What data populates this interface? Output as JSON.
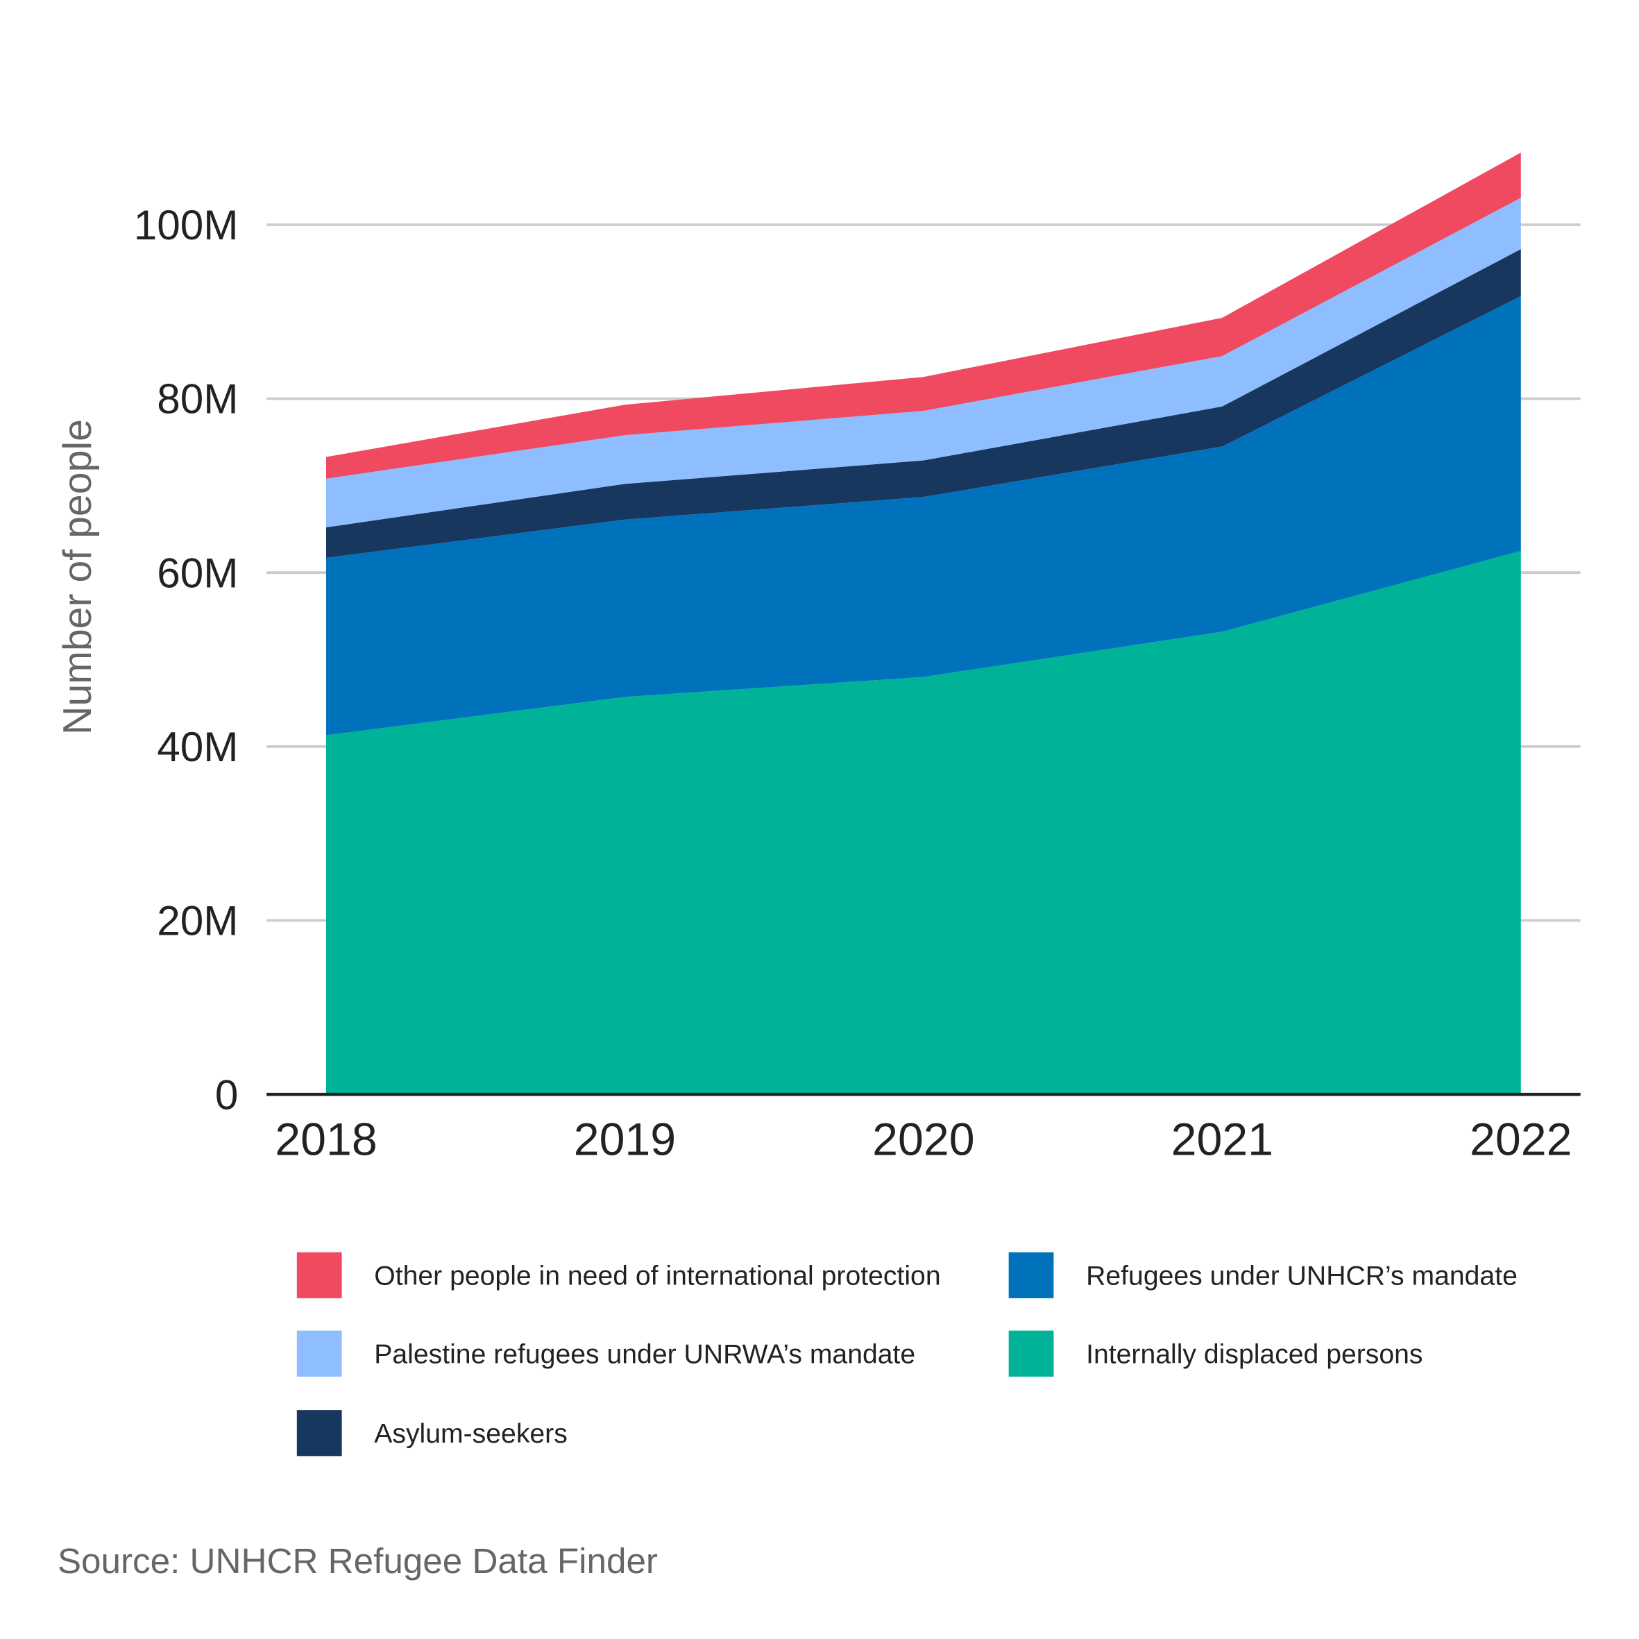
{
  "chart_data": {
    "type": "area",
    "stacked": true,
    "title": "",
    "xlabel": "",
    "ylabel": "Number of people",
    "x": [
      "2018",
      "2019",
      "2020",
      "2021",
      "2022"
    ],
    "ylim": [
      0,
      100000000
    ],
    "yticks": [
      0,
      20000000,
      40000000,
      60000000,
      80000000,
      100000000
    ],
    "ytick_labels": [
      "0",
      "20M",
      "40M",
      "60M",
      "80M",
      "100M"
    ],
    "grid": true,
    "legend_position": "bottom",
    "series": [
      {
        "name": "Internally displaced persons",
        "color": "#00B398",
        "values": [
          41300000,
          45700000,
          48000000,
          53200000,
          62500000
        ]
      },
      {
        "name": "Refugees under UNHCR’s mandate",
        "color": "#0072BC",
        "values": [
          20400000,
          20400000,
          20700000,
          21300000,
          29300000
        ]
      },
      {
        "name": "Asylum-seekers",
        "color": "#18375F",
        "values": [
          3500000,
          4100000,
          4200000,
          4600000,
          5400000
        ]
      },
      {
        "name": "Palestine refugees under UNRWA’s mandate",
        "color": "#8EBEFF",
        "values": [
          5600000,
          5600000,
          5700000,
          5800000,
          5900000
        ]
      },
      {
        "name": "Other people in need of international protection",
        "color": "#EF4A60",
        "values": [
          2500000,
          3500000,
          3900000,
          4400000,
          5200000
        ]
      }
    ],
    "legend_order": [
      4,
      1,
      3,
      0,
      2
    ],
    "source": "Source: UNHCR Refugee Data Finder"
  }
}
